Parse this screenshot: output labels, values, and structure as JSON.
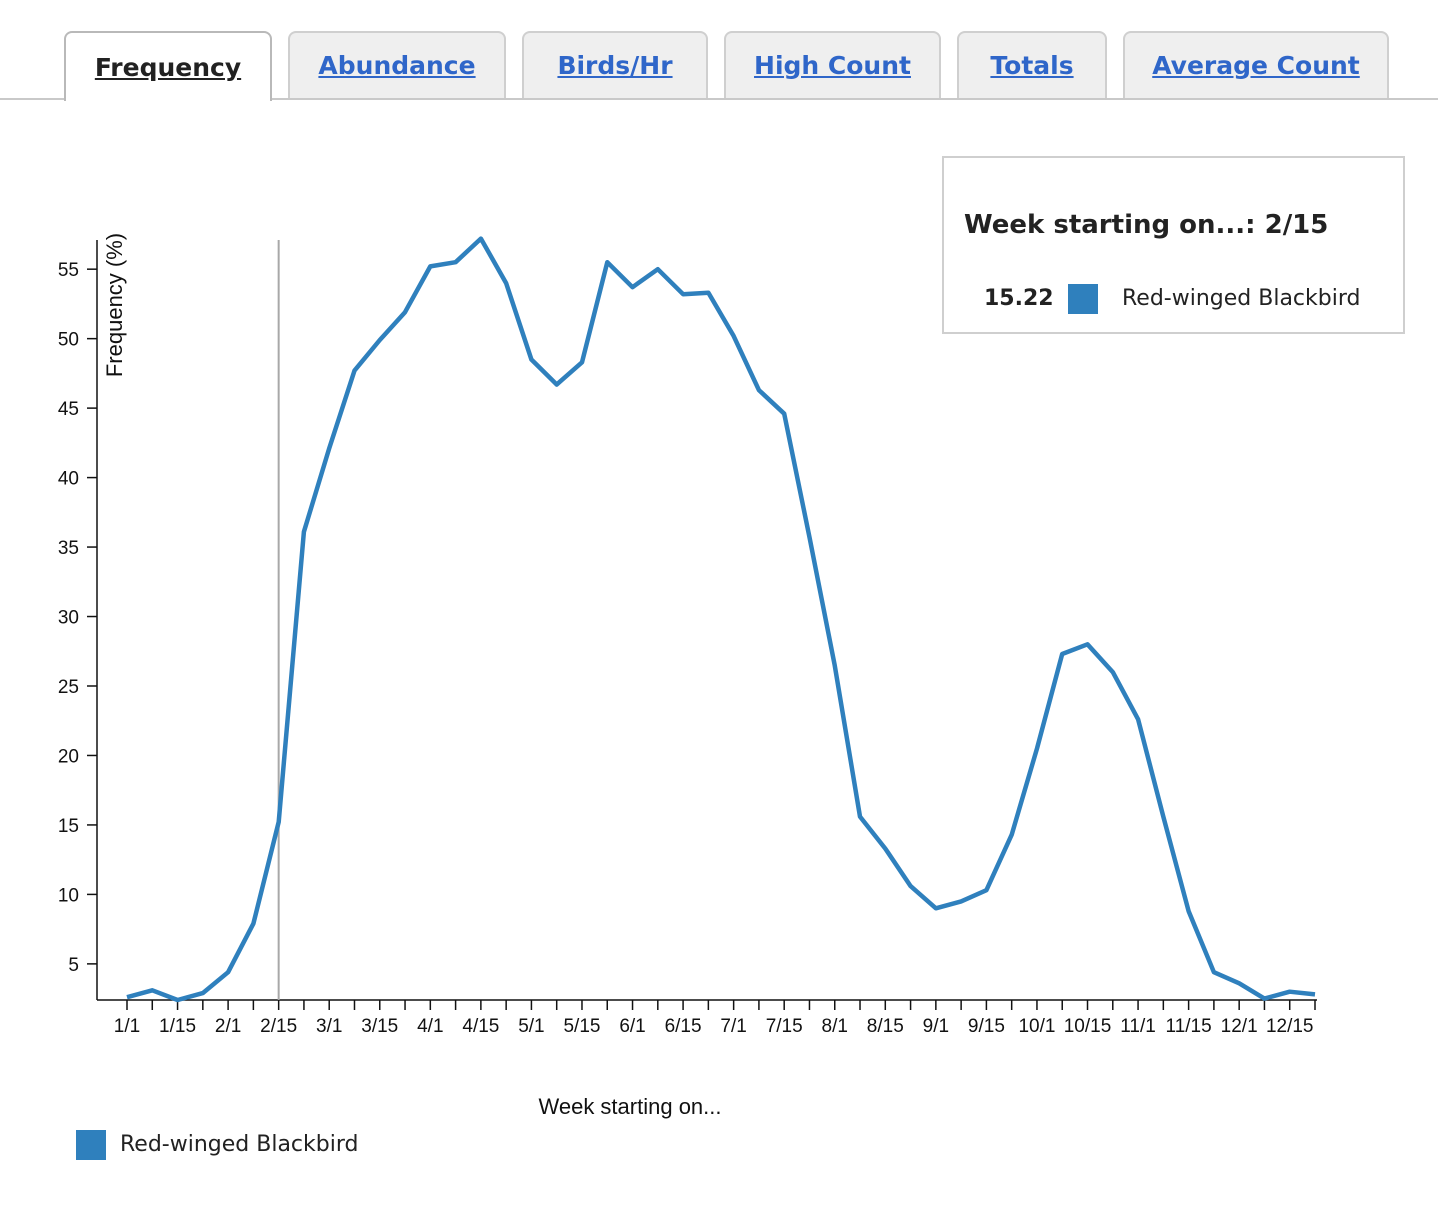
{
  "tabs": [
    {
      "label": "Frequency",
      "active": true
    },
    {
      "label": "Abundance",
      "active": false
    },
    {
      "label": "Birds/Hr",
      "active": false
    },
    {
      "label": "High Count",
      "active": false
    },
    {
      "label": "Totals",
      "active": false
    },
    {
      "label": "Average Count",
      "active": false
    }
  ],
  "tooltip": {
    "title": "Week starting on...: 2/15",
    "value": "15.22",
    "series_name": "Red-winged Blackbird"
  },
  "legend": {
    "label": "Red-winged Blackbird"
  },
  "colors": {
    "series": "#2f80bd",
    "hover_line": "#a8a8a8",
    "axis": "#111111",
    "link": "#2f66c9"
  },
  "chart_data": {
    "type": "line",
    "title": "",
    "xlabel": "Week starting on...",
    "ylabel": "Frequency (%)",
    "x_tick_labels": [
      "1/1",
      "1/15",
      "2/1",
      "2/15",
      "3/1",
      "3/15",
      "4/1",
      "4/15",
      "5/1",
      "5/15",
      "6/1",
      "6/15",
      "7/1",
      "7/15",
      "8/1",
      "8/15",
      "9/1",
      "9/15",
      "10/1",
      "10/15",
      "11/1",
      "11/15",
      "12/1",
      "12/15"
    ],
    "y_ticks": [
      5,
      10,
      15,
      20,
      25,
      30,
      35,
      40,
      45,
      50,
      55
    ],
    "ylim": [
      2.4,
      57.1
    ],
    "weeks_per_month": 4,
    "hover_week": "2/15",
    "series": [
      {
        "name": "Red-winged Blackbird",
        "values": [
          2.6,
          3.1,
          2.4,
          2.9,
          4.4,
          7.9,
          15.22,
          36.1,
          42.1,
          47.7,
          49.9,
          51.9,
          55.2,
          55.5,
          57.2,
          54.0,
          48.5,
          46.7,
          48.3,
          55.5,
          53.7,
          55.0,
          53.2,
          53.3,
          50.2,
          46.3,
          44.6,
          35.7,
          26.5,
          15.6,
          13.3,
          10.6,
          9.0,
          9.5,
          10.3,
          14.3,
          20.5,
          27.3,
          28.0,
          26.0,
          22.6,
          15.6,
          8.8,
          4.4,
          3.6,
          2.5,
          3.0,
          2.8
        ]
      }
    ],
    "grid": false,
    "legend_position": "bottom-left"
  }
}
